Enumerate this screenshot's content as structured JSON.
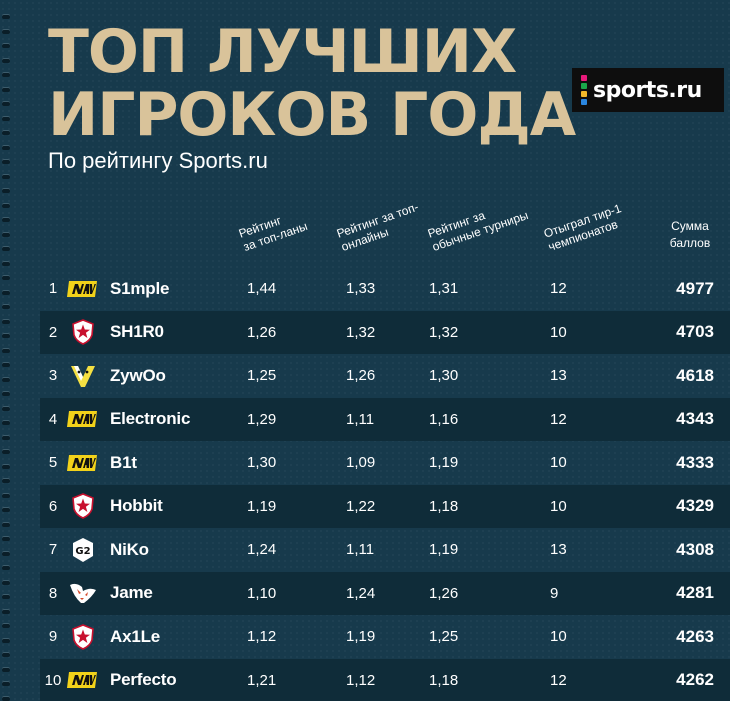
{
  "title_line1": "ТОП ЛУЧШИХ",
  "title_line2": "ИГРОКОВ ГОДА",
  "subtitle": "По рейтингу Sports.ru",
  "logo": {
    "text": "sports.ru",
    "dot_colors": [
      "#e8197a",
      "#1aa64a",
      "#f2b82a",
      "#2a86e0"
    ]
  },
  "columns": {
    "rating_top_lan": "Рейтинг\nза топ-ланы",
    "rating_top_online": "Рейтинг за топ-\nонлайны",
    "rating_regular": "Рейтинг за\nобычные турниры",
    "tier1_played": "Отыграл тир-1\nчемпионатов",
    "total": "Сумма\nбаллов"
  },
  "rows": [
    {
      "rank": "1",
      "team_icon": "navi-logo-icon",
      "player": "S1mple",
      "r1": "1,44",
      "r2": "1,33",
      "r3": "1,31",
      "played": "12",
      "total": "4977"
    },
    {
      "rank": "2",
      "team_icon": "gambit-logo-icon",
      "player": "SH1R0",
      "r1": "1,26",
      "r2": "1,32",
      "r3": "1,32",
      "played": "10",
      "total": "4703"
    },
    {
      "rank": "3",
      "team_icon": "vitality-logo-icon",
      "player": "ZywOo",
      "r1": "1,25",
      "r2": "1,26",
      "r3": "1,30",
      "played": "13",
      "total": "4618"
    },
    {
      "rank": "4",
      "team_icon": "navi-logo-icon",
      "player": "Electronic",
      "r1": "1,29",
      "r2": "1,11",
      "r3": "1,16",
      "played": "12",
      "total": "4343"
    },
    {
      "rank": "5",
      "team_icon": "navi-logo-icon",
      "player": "B1t",
      "r1": "1,30",
      "r2": "1,09",
      "r3": "1,19",
      "played": "10",
      "total": "4333"
    },
    {
      "rank": "6",
      "team_icon": "gambit-logo-icon",
      "player": "Hobbit",
      "r1": "1,19",
      "r2": "1,22",
      "r3": "1,18",
      "played": "10",
      "total": "4329"
    },
    {
      "rank": "7",
      "team_icon": "g2-logo-icon",
      "player": "NiKo",
      "r1": "1,24",
      "r2": "1,11",
      "r3": "1,19",
      "played": "13",
      "total": "4308"
    },
    {
      "rank": "8",
      "team_icon": "virtuspro-logo-icon",
      "player": "Jame",
      "r1": "1,10",
      "r2": "1,24",
      "r3": "1,26",
      "played": "9",
      "total": "4281"
    },
    {
      "rank": "9",
      "team_icon": "gambit-logo-icon",
      "player": "Ax1Le",
      "r1": "1,12",
      "r2": "1,19",
      "r3": "1,25",
      "played": "10",
      "total": "4263"
    },
    {
      "rank": "10",
      "team_icon": "navi-logo-icon",
      "player": "Perfecto",
      "r1": "1,21",
      "r2": "1,12",
      "r3": "1,18",
      "played": "12",
      "total": "4262"
    }
  ]
}
